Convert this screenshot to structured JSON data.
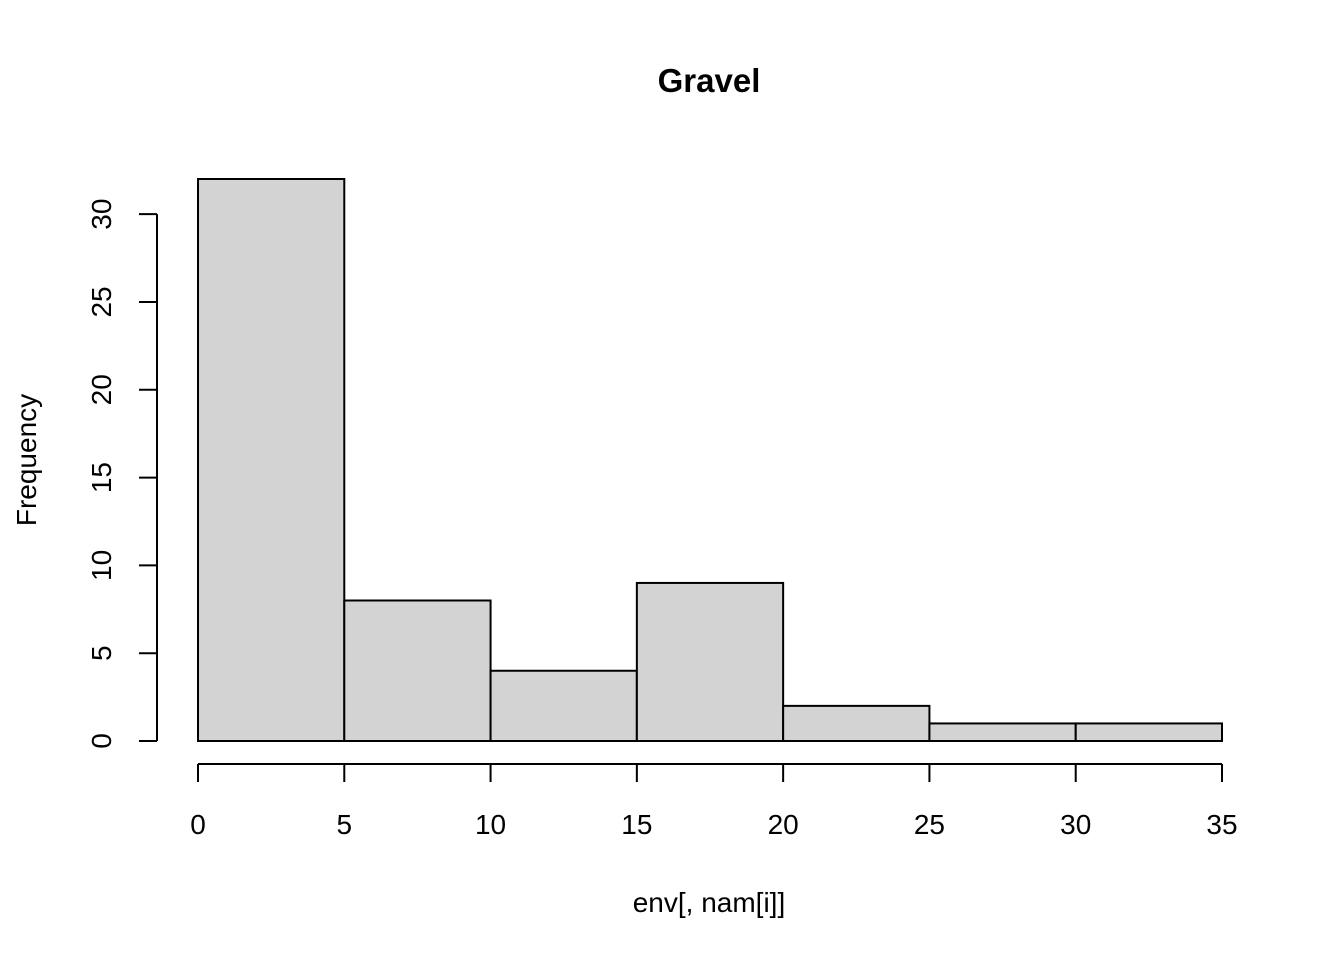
{
  "chart_data": {
    "type": "bar",
    "title": "Gravel",
    "xlabel": "env[, nam[i]]",
    "ylabel": "Frequency",
    "bin_edges": [
      0,
      5,
      10,
      15,
      20,
      25,
      30,
      35
    ],
    "values": [
      32,
      8,
      4,
      9,
      2,
      1,
      1
    ],
    "xlim": [
      0,
      35
    ],
    "ylim": [
      0,
      32
    ],
    "x_ticks": [
      0,
      5,
      10,
      15,
      20,
      25,
      30,
      35
    ],
    "y_ticks": [
      0,
      5,
      10,
      15,
      20,
      25,
      30
    ],
    "bar_color": "#d3d3d3",
    "grid": false
  }
}
